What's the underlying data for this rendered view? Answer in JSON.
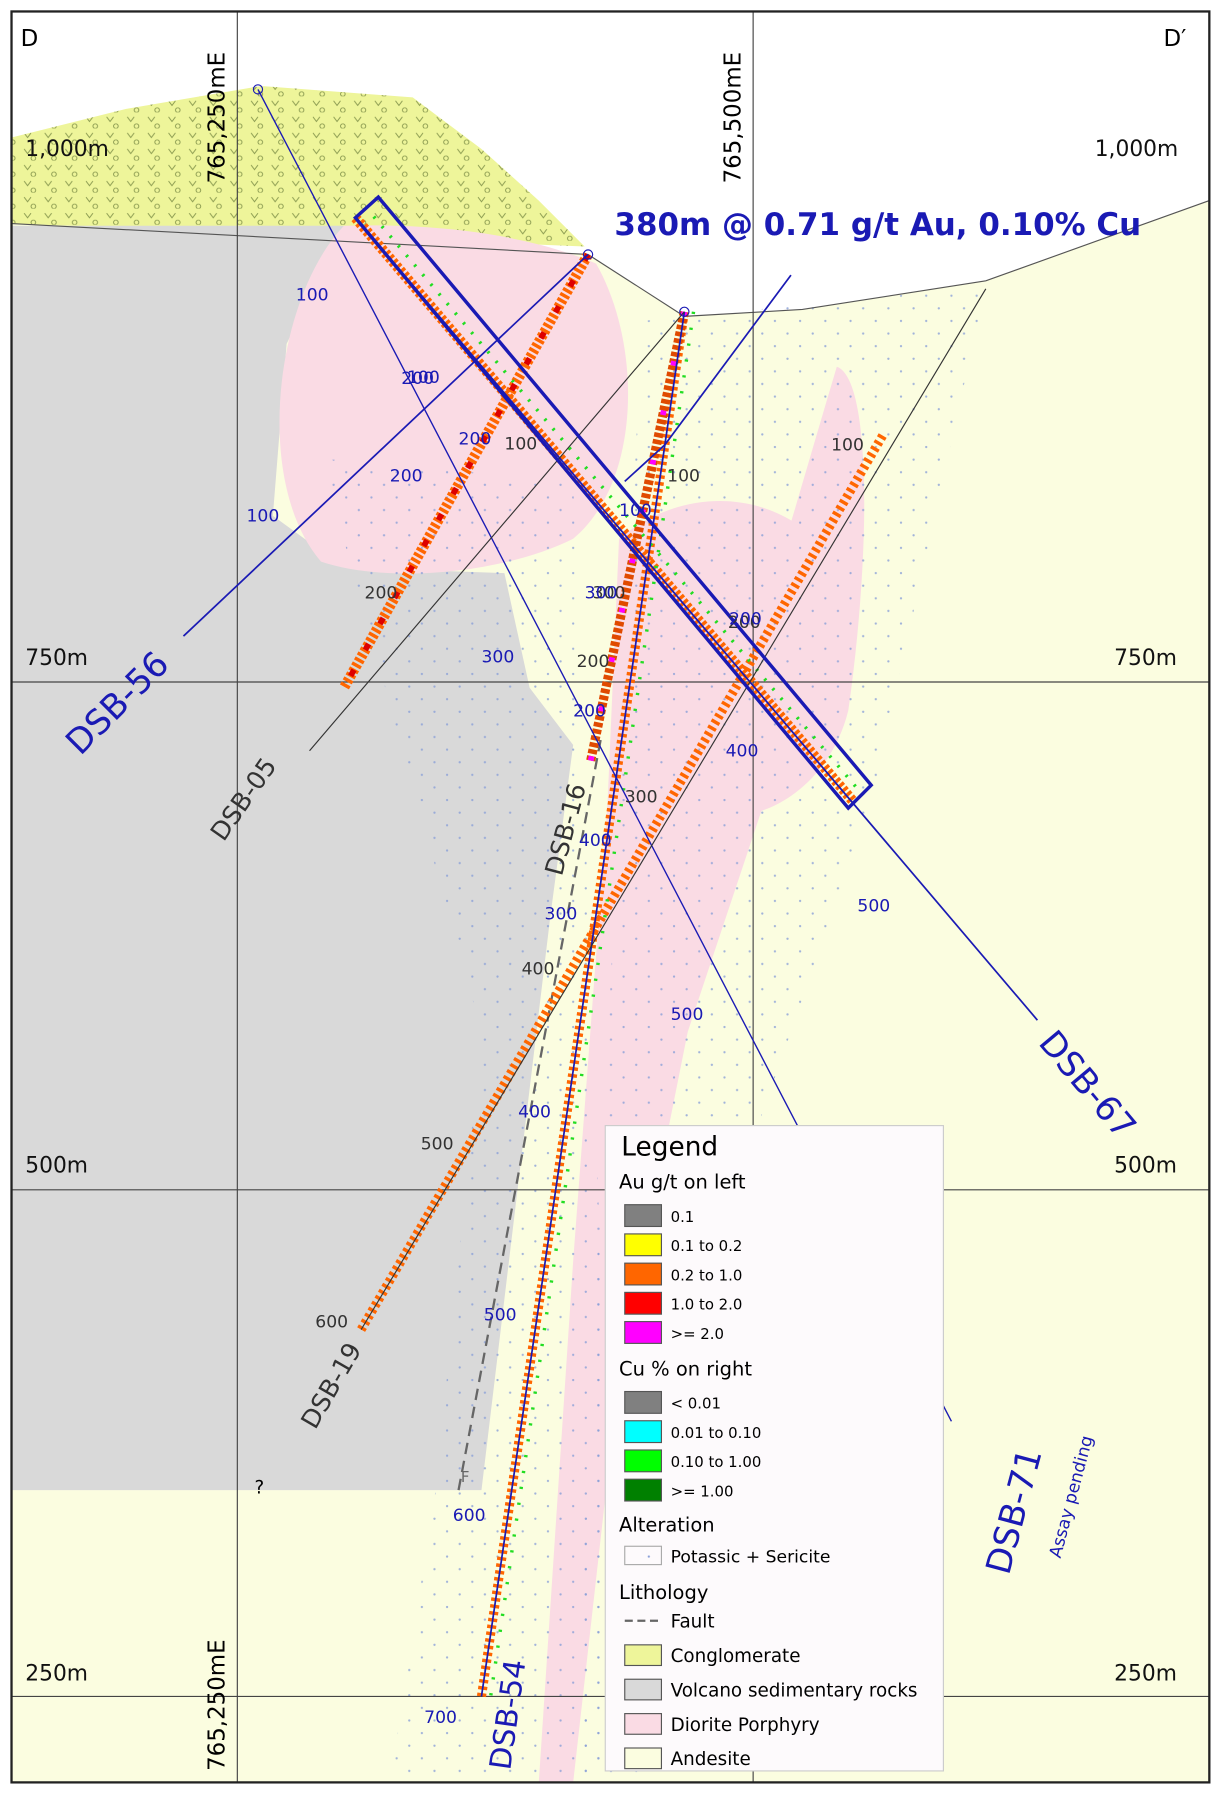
{
  "section": {
    "left": "D",
    "right": "D′"
  },
  "eastings": [
    "765,250mE",
    "765,500mE",
    "765,250mE"
  ],
  "elevations": [
    "1,000m",
    "750m",
    "500m",
    "250m"
  ],
  "headline": "380m @ 0.71 g/t Au, 0.10% Cu",
  "holes": {
    "DSB-56": {
      "name": "DSB-56",
      "depths": [
        "100",
        "200",
        "100",
        "200"
      ]
    },
    "DSB-05": {
      "name": "DSB-05",
      "depths": [
        "100",
        "200"
      ]
    },
    "DSB-16": {
      "name": "DSB-16",
      "depths": [
        "100",
        "200",
        "300"
      ]
    },
    "DSB-19": {
      "name": "DSB-19",
      "depths": [
        "100",
        "200",
        "300",
        "400",
        "500",
        "600"
      ]
    },
    "DSB-67": {
      "name": "DSB-67",
      "depths": [
        "100",
        "200",
        "300",
        "400",
        "500"
      ]
    },
    "DSB-54": {
      "name": "DSB-54",
      "depths": [
        "100",
        "200",
        "300",
        "400",
        "500",
        "600",
        "700"
      ]
    },
    "DSB-71": {
      "name": "DSB-71",
      "depths": [
        "100",
        "200",
        "300",
        "500"
      ],
      "note": "Assay pending"
    }
  },
  "unknown": "?",
  "fault_mark": "F",
  "legend": {
    "title": "Legend",
    "au": {
      "title": "Au g/t on left",
      "items": [
        {
          "label": "0.1",
          "color": "#808080"
        },
        {
          "label": "0.1 to 0.2",
          "color": "#ffff00"
        },
        {
          "label": "0.2 to 1.0",
          "color": "#ff6600"
        },
        {
          "label": "1.0 to 2.0",
          "color": "#ff0000"
        },
        {
          "label": ">= 2.0",
          "color": "#ff00ff"
        }
      ]
    },
    "cu": {
      "title": "Cu % on right",
      "items": [
        {
          "label": "< 0.01",
          "color": "#808080"
        },
        {
          "label": "0.01 to 0.10",
          "color": "#00ffff"
        },
        {
          "label": "0.10 to 1.00",
          "color": "#00ff00"
        },
        {
          "label": ">= 1.00",
          "color": "#008000"
        }
      ]
    },
    "alteration": {
      "title": "Alteration",
      "items": [
        "Potassic + Sericite"
      ]
    },
    "lithology": {
      "title": "Lithology",
      "items": [
        "Fault",
        "Conglomerate",
        "Volcano sedimentary rocks",
        "Diorite Porphyry",
        "Andesite"
      ]
    }
  }
}
